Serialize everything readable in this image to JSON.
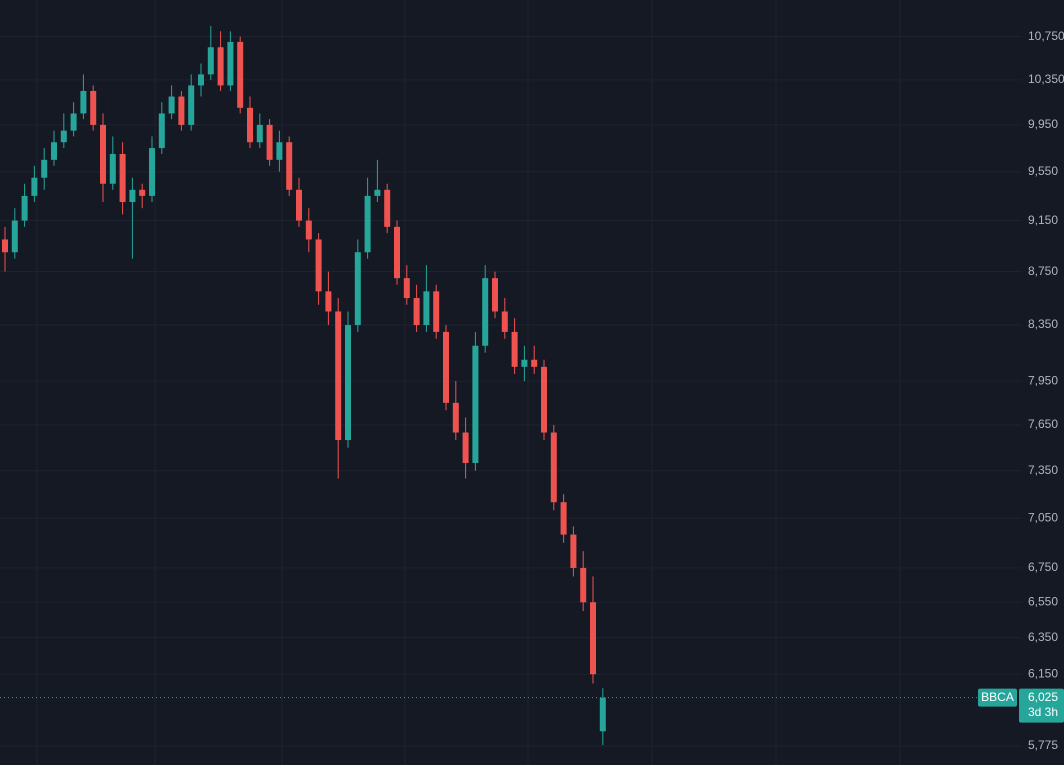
{
  "chart_data": {
    "type": "candlestick",
    "symbol": "BBCA",
    "countdown": "3d 3h",
    "log_scale": true,
    "grid": true,
    "up_color": "#26a69a",
    "down_color": "#ef5350",
    "ylim": [
      5680,
      11100
    ],
    "yticks": [
      {
        "value": 5775,
        "label": "5,775"
      },
      {
        "value": 6150,
        "label": "6,150"
      },
      {
        "value": 6350,
        "label": "6,350"
      },
      {
        "value": 6550,
        "label": "6,550"
      },
      {
        "value": 6750,
        "label": "6,750"
      },
      {
        "value": 7050,
        "label": "7,050"
      },
      {
        "value": 7350,
        "label": "7,350"
      },
      {
        "value": 7650,
        "label": "7,650"
      },
      {
        "value": 7950,
        "label": "7,950"
      },
      {
        "value": 8350,
        "label": "8,350"
      },
      {
        "value": 8750,
        "label": "8,750"
      },
      {
        "value": 9150,
        "label": "9,150"
      },
      {
        "value": 9550,
        "label": "9,550"
      },
      {
        "value": 9950,
        "label": "9,950"
      },
      {
        "value": 10350,
        "label": "10,350"
      },
      {
        "value": 10750,
        "label": "10,750"
      }
    ],
    "last_price": {
      "value": 6025,
      "label": "6,025"
    },
    "ohlc": [
      [
        9000,
        9100,
        8750,
        8900
      ],
      [
        8900,
        9250,
        8850,
        9150
      ],
      [
        9150,
        9450,
        9100,
        9350
      ],
      [
        9350,
        9600,
        9300,
        9500
      ],
      [
        9500,
        9750,
        9400,
        9650
      ],
      [
        9650,
        9900,
        9600,
        9800
      ],
      [
        9800,
        10050,
        9750,
        9900
      ],
      [
        9900,
        10150,
        9850,
        10050
      ],
      [
        10050,
        10400,
        10000,
        10250
      ],
      [
        10250,
        10300,
        9900,
        9950
      ],
      [
        9950,
        10050,
        9300,
        9450
      ],
      [
        9450,
        9850,
        9400,
        9700
      ],
      [
        9700,
        9800,
        9200,
        9300
      ],
      [
        9300,
        9500,
        8850,
        9400
      ],
      [
        9400,
        9450,
        9250,
        9350
      ],
      [
        9350,
        9850,
        9300,
        9750
      ],
      [
        9750,
        10150,
        9700,
        10050
      ],
      [
        10050,
        10300,
        10000,
        10200
      ],
      [
        10200,
        10250,
        9900,
        9950
      ],
      [
        9950,
        10400,
        9900,
        10300
      ],
      [
        10300,
        10500,
        10200,
        10400
      ],
      [
        10400,
        10850,
        10350,
        10650
      ],
      [
        10650,
        10800,
        10250,
        10300
      ],
      [
        10300,
        10800,
        10250,
        10700
      ],
      [
        10700,
        10750,
        10050,
        10100
      ],
      [
        10100,
        10200,
        9750,
        9800
      ],
      [
        9800,
        10050,
        9750,
        9950
      ],
      [
        9950,
        10000,
        9600,
        9650
      ],
      [
        9650,
        9900,
        9550,
        9800
      ],
      [
        9800,
        9850,
        9350,
        9400
      ],
      [
        9400,
        9500,
        9100,
        9150
      ],
      [
        9150,
        9250,
        8900,
        9000
      ],
      [
        9000,
        9050,
        8500,
        8600
      ],
      [
        8600,
        8750,
        8350,
        8450
      ],
      [
        8450,
        8550,
        7300,
        7550
      ],
      [
        7550,
        8450,
        7500,
        8350
      ],
      [
        8350,
        9000,
        8300,
        8900
      ],
      [
        8900,
        9500,
        8850,
        9350
      ],
      [
        9350,
        9650,
        9300,
        9400
      ],
      [
        9400,
        9450,
        9050,
        9100
      ],
      [
        9100,
        9150,
        8650,
        8700
      ],
      [
        8700,
        8800,
        8500,
        8550
      ],
      [
        8550,
        8650,
        8300,
        8350
      ],
      [
        8350,
        8800,
        8300,
        8600
      ],
      [
        8600,
        8650,
        8250,
        8300
      ],
      [
        8300,
        8350,
        7750,
        7800
      ],
      [
        7800,
        7950,
        7550,
        7600
      ],
      [
        7600,
        7700,
        7300,
        7400
      ],
      [
        7400,
        8300,
        7350,
        8200
      ],
      [
        8200,
        8800,
        8150,
        8700
      ],
      [
        8700,
        8750,
        8400,
        8450
      ],
      [
        8450,
        8550,
        8250,
        8300
      ],
      [
        8300,
        8400,
        8000,
        8050
      ],
      [
        8050,
        8200,
        7950,
        8100
      ],
      [
        8100,
        8200,
        8000,
        8050
      ],
      [
        8050,
        8100,
        7550,
        7600
      ],
      [
        7600,
        7650,
        7100,
        7150
      ],
      [
        7150,
        7200,
        6900,
        6950
      ],
      [
        6950,
        7000,
        6700,
        6750
      ],
      [
        6750,
        6850,
        6500,
        6550
      ],
      [
        6550,
        6700,
        6100,
        6150
      ],
      [
        5850,
        6075,
        5780,
        6025
      ]
    ]
  }
}
